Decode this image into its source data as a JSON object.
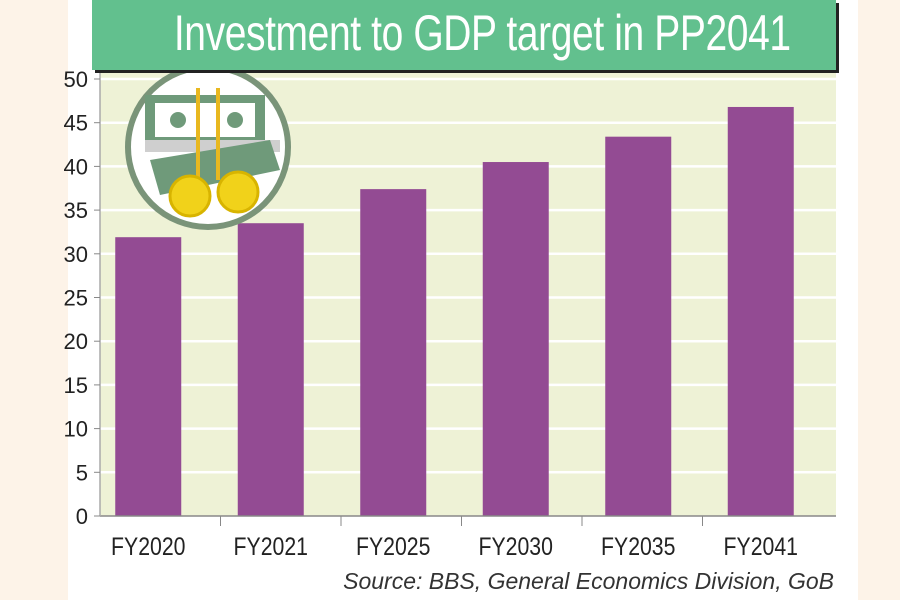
{
  "chart_data": {
    "type": "bar",
    "title": "Investment to GDP target in PP2041",
    "categories": [
      "FY2020",
      "FY2021",
      "FY2025",
      "FY2030",
      "FY2035",
      "FY2041"
    ],
    "values": [
      31.9,
      33.5,
      37.4,
      40.5,
      43.4,
      46.8
    ],
    "yticks": [
      0,
      5,
      10,
      15,
      20,
      25,
      30,
      35,
      40,
      45,
      50
    ],
    "ylim": [
      0,
      50
    ],
    "xlabel": "",
    "ylabel": "",
    "grid": true,
    "source": "Source: BBS, General Economics Division, GoB",
    "colors": {
      "bar": "#934b93",
      "plot_bg": "#eef2d6",
      "banner": "#62c08e",
      "grid": "#ffffff"
    },
    "decoration_icon": "money-coins-icon"
  }
}
